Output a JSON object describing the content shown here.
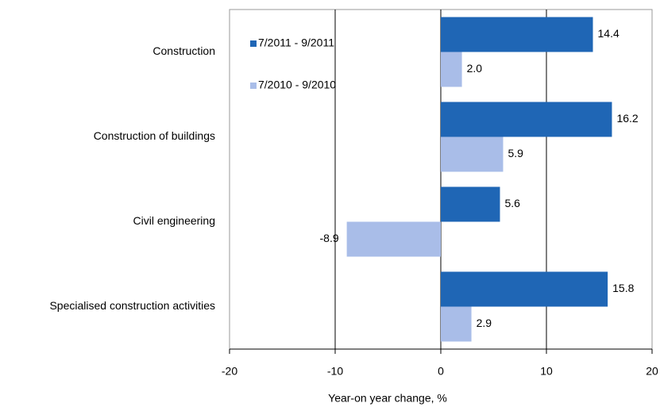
{
  "chart_data": {
    "type": "hbar",
    "xlabel": "Year-on year change, %",
    "categories": [
      "Construction",
      "Construction of buildings",
      "Civil engineering",
      "Specialised construction activities"
    ],
    "series": [
      {
        "name": "7/2011 - 9/2011",
        "color": "#1f66b5",
        "values": [
          14.4,
          16.2,
          5.6,
          15.8
        ],
        "value_labels": [
          "14.4",
          "16.2",
          "5.6",
          "15.8"
        ]
      },
      {
        "name": "7/2010 - 9/2010",
        "color": "#a9bde8",
        "values": [
          2.0,
          5.9,
          -8.9,
          2.9
        ],
        "value_labels": [
          "2.0",
          "5.9",
          "-8.9",
          "2.9"
        ]
      }
    ],
    "xlim": [
      -20,
      20
    ],
    "xticks": [
      -20,
      -10,
      0,
      10,
      20
    ],
    "grid": true
  }
}
